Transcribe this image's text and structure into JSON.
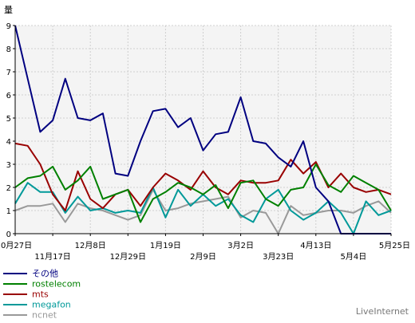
{
  "chart_data": {
    "type": "line",
    "ylabel": "量",
    "ylim": [
      0,
      9
    ],
    "yticks": [
      0,
      1,
      2,
      3,
      4,
      5,
      6,
      7,
      8,
      9
    ],
    "grid": true,
    "x_count": 31,
    "x_tick_labels": [
      {
        "i": 0,
        "label": "0月27日",
        "row": 1
      },
      {
        "i": 3,
        "label": "11月17日",
        "row": 2
      },
      {
        "i": 6,
        "label": "12月8日",
        "row": 1
      },
      {
        "i": 9,
        "label": "12月29日",
        "row": 2
      },
      {
        "i": 12,
        "label": "1月19日",
        "row": 1
      },
      {
        "i": 15,
        "label": "2月9日",
        "row": 2
      },
      {
        "i": 18,
        "label": "3月2日",
        "row": 1
      },
      {
        "i": 21,
        "label": "3月23日",
        "row": 2
      },
      {
        "i": 24,
        "label": "4月13日",
        "row": 1
      },
      {
        "i": 27,
        "label": "5月4日",
        "row": 2
      },
      {
        "i": 30,
        "label": "5月25日",
        "row": 1
      }
    ],
    "series": [
      {
        "name": "その他",
        "color": "#000080",
        "values": [
          9.0,
          6.7,
          4.4,
          4.9,
          6.7,
          5.0,
          4.9,
          5.2,
          2.6,
          2.5,
          4.0,
          5.3,
          5.4,
          4.6,
          5.0,
          3.6,
          4.3,
          4.4,
          5.9,
          4.0,
          3.9,
          3.3,
          2.9,
          4.0,
          2.0,
          1.4,
          0.0,
          0.0,
          0.0,
          0.0,
          0.0
        ]
      },
      {
        "name": "rostelecom",
        "color": "#008000",
        "values": [
          2.0,
          2.4,
          2.5,
          2.9,
          1.9,
          2.3,
          2.9,
          1.5,
          1.7,
          1.9,
          0.5,
          1.5,
          1.8,
          2.2,
          2.0,
          1.7,
          2.1,
          1.1,
          2.2,
          2.3,
          1.5,
          1.2,
          1.9,
          2.0,
          3.0,
          2.1,
          1.8,
          2.5,
          2.2,
          1.9,
          1.0
        ]
      },
      {
        "name": "mts",
        "color": "#990000",
        "values": [
          3.9,
          3.8,
          3.0,
          1.7,
          1.0,
          2.7,
          1.5,
          1.1,
          1.7,
          1.9,
          1.2,
          2.0,
          2.6,
          2.3,
          1.9,
          2.7,
          2.0,
          1.7,
          2.3,
          2.2,
          2.2,
          2.3,
          3.2,
          2.6,
          3.1,
          2.0,
          2.6,
          2.0,
          1.8,
          1.9,
          1.7
        ]
      },
      {
        "name": "megafon",
        "color": "#009999",
        "values": [
          1.3,
          2.2,
          1.8,
          1.8,
          0.9,
          1.6,
          1.0,
          1.1,
          0.9,
          1.0,
          0.9,
          2.0,
          0.7,
          1.9,
          1.2,
          1.7,
          1.2,
          1.5,
          0.8,
          0.5,
          1.5,
          1.9,
          1.0,
          0.6,
          0.9,
          1.4,
          0.9,
          0.0,
          1.4,
          0.8,
          1.0
        ]
      },
      {
        "name": "ncnet",
        "color": "#999999",
        "values": [
          1.0,
          1.2,
          1.2,
          1.3,
          0.5,
          1.3,
          1.1,
          1.0,
          0.8,
          0.6,
          0.8,
          1.9,
          1.0,
          1.1,
          1.3,
          1.4,
          1.5,
          1.6,
          0.7,
          1.0,
          0.9,
          0.0,
          1.2,
          0.8,
          0.9,
          1.0,
          1.0,
          0.9,
          1.2,
          1.4,
          0.9
        ]
      }
    ]
  },
  "credit": "LiveInternet"
}
